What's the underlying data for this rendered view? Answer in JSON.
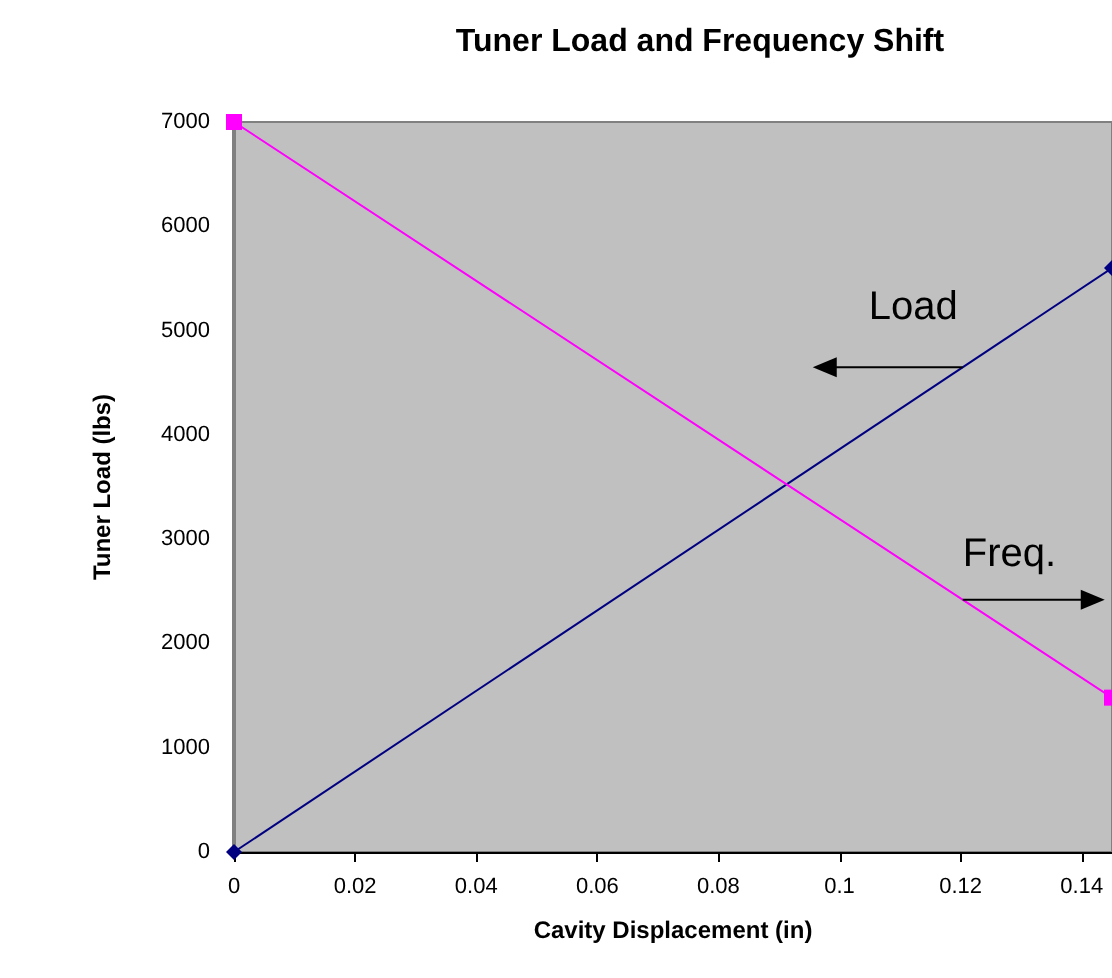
{
  "chart_data": {
    "type": "line",
    "title": "Tuner Load and Frequency Shift",
    "xlabel": "Cavity Displacement (in)",
    "ylabel": "Tuner Load (lbs)",
    "x": [
      0,
      0.145
    ],
    "series": [
      {
        "name": "Load",
        "color": "#000080",
        "marker": "diamond",
        "values": [
          0,
          5600
        ]
      },
      {
        "name": "Freq.",
        "color": "#ff00ff",
        "marker": "square",
        "values": [
          7000,
          1480
        ]
      }
    ],
    "xlim": [
      0,
      0.145
    ],
    "xticks": [
      0,
      0.02,
      0.04,
      0.06,
      0.08,
      0.1,
      0.12,
      0.14
    ],
    "ylim": [
      0,
      7000
    ],
    "yticks": [
      0,
      1000,
      2000,
      3000,
      4000,
      5000,
      6000,
      7000
    ],
    "grid": false,
    "legend": false
  }
}
